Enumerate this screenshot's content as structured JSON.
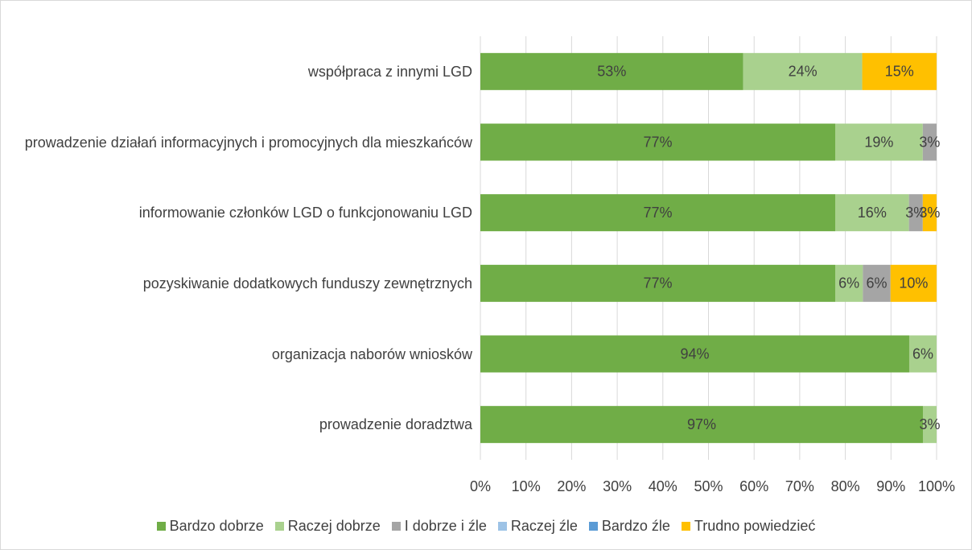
{
  "chart_data": {
    "type": "stacked_bar_100",
    "orientation": "horizontal",
    "categories": [
      "współpraca z innymi LGD",
      "prowadzenie działań informacyjnych i promocyjnych dla mieszkańców",
      "informowanie członków LGD o funkcjonowaniu LGD",
      "pozyskiwanie dodatkowych funduszy zewnętrznych",
      "organizacja naborów wniosków",
      "prowadzenie doradztwa"
    ],
    "series": [
      {
        "name": "Bardzo dobrze",
        "color": "#70ad47",
        "values": [
          53,
          77,
          77,
          77,
          94,
          97
        ],
        "value_labels": [
          "53%",
          "77%",
          "77%",
          "77%",
          "94%",
          "97%"
        ]
      },
      {
        "name": "Raczej dobrze",
        "color": "#a9d18e",
        "values": [
          24,
          19,
          16,
          6,
          6,
          3
        ],
        "value_labels": [
          "24%",
          "19%",
          "16%",
          "6%",
          "6%",
          "3%"
        ]
      },
      {
        "name": "I dobrze i źle",
        "color": "#a5a5a5",
        "values": [
          0,
          3,
          3,
          6,
          0,
          0
        ],
        "value_labels": [
          null,
          "3%",
          "3%",
          "6%",
          null,
          null
        ]
      },
      {
        "name": "Raczej źle",
        "color": "#9dc3e6",
        "values": [
          0,
          0,
          0,
          0,
          0,
          0
        ],
        "value_labels": [
          null,
          null,
          null,
          null,
          null,
          null
        ]
      },
      {
        "name": "Bardzo źle",
        "color": "#5b9bd5",
        "values": [
          0,
          0,
          0,
          0,
          0,
          0
        ],
        "value_labels": [
          null,
          null,
          null,
          null,
          null,
          null
        ]
      },
      {
        "name": "Trudno powiedzieć",
        "color": "#ffc000",
        "values": [
          15,
          0,
          3,
          10,
          0,
          0
        ],
        "value_labels": [
          "15%",
          null,
          "3%",
          "10%",
          null,
          null
        ]
      }
    ],
    "xlim": [
      0,
      100
    ],
    "xticks": [
      {
        "value": 0,
        "label": "0%"
      },
      {
        "value": 10,
        "label": "10%"
      },
      {
        "value": 20,
        "label": "20%"
      },
      {
        "value": 30,
        "label": "30%"
      },
      {
        "value": 40,
        "label": "40%"
      },
      {
        "value": 50,
        "label": "50%"
      },
      {
        "value": 60,
        "label": "60%"
      },
      {
        "value": 70,
        "label": "70%"
      },
      {
        "value": 80,
        "label": "80%"
      },
      {
        "value": 90,
        "label": "90%"
      },
      {
        "value": 100,
        "label": "100%"
      }
    ],
    "grid": true,
    "legend": "bottom"
  }
}
